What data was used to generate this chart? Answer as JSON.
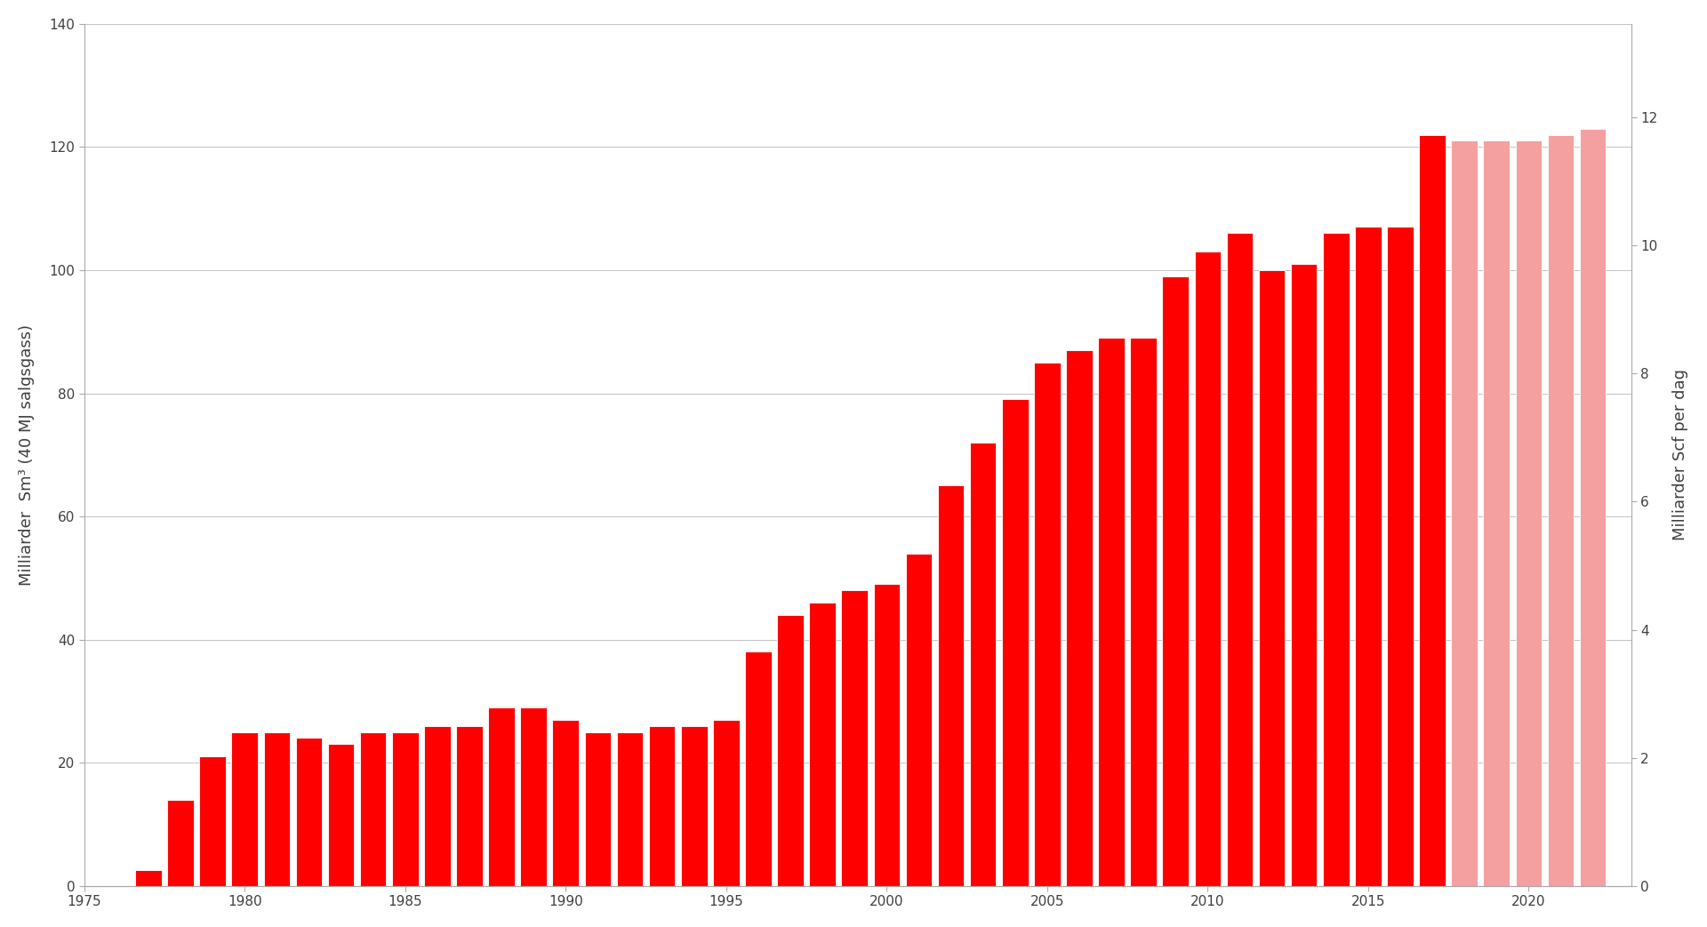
{
  "years": [
    1977,
    1978,
    1979,
    1980,
    1981,
    1982,
    1983,
    1984,
    1985,
    1986,
    1987,
    1988,
    1989,
    1990,
    1991,
    1992,
    1993,
    1994,
    1995,
    1996,
    1997,
    1998,
    1999,
    2000,
    2001,
    2002,
    2003,
    2004,
    2005,
    2006,
    2007,
    2008,
    2009,
    2010,
    2011,
    2012,
    2013,
    2014,
    2015,
    2016,
    2017,
    2018,
    2019,
    2020,
    2021,
    2022
  ],
  "values": [
    2.5,
    14,
    21,
    25,
    25,
    24,
    23,
    25,
    25,
    26,
    26,
    29,
    29,
    27,
    25,
    25,
    26,
    26,
    27,
    38,
    44,
    46,
    48,
    49,
    54,
    65,
    72,
    79,
    85,
    87,
    89,
    89,
    99,
    103,
    106,
    100,
    101,
    106,
    107,
    107,
    122,
    121,
    121,
    121,
    122,
    123
  ],
  "colors_actual": "#ff0000",
  "colors_forecast": "#f5a0a0",
  "forecast_start_year": 2018,
  "ylim_left": [
    0,
    140
  ],
  "ylim_right": [
    0,
    13.46
  ],
  "right_ticks": [
    0,
    2,
    4,
    6,
    8,
    10,
    12
  ],
  "left_ticks": [
    0,
    20,
    40,
    60,
    80,
    100,
    120,
    140
  ],
  "ylabel_left": "Milliarder  Sm³ (40 MJ salgsgass)",
  "ylabel_right": "Milliarder Scf per dag",
  "xticks": [
    1975,
    1980,
    1985,
    1990,
    1995,
    2000,
    2005,
    2010,
    2015,
    2020
  ],
  "xlim": [
    1975.3,
    2023.2
  ],
  "background_color": "#ffffff",
  "bar_width": 0.82,
  "spine_color": "#aaaaaa",
  "tick_color": "#aaaaaa",
  "text_color": "#404040"
}
